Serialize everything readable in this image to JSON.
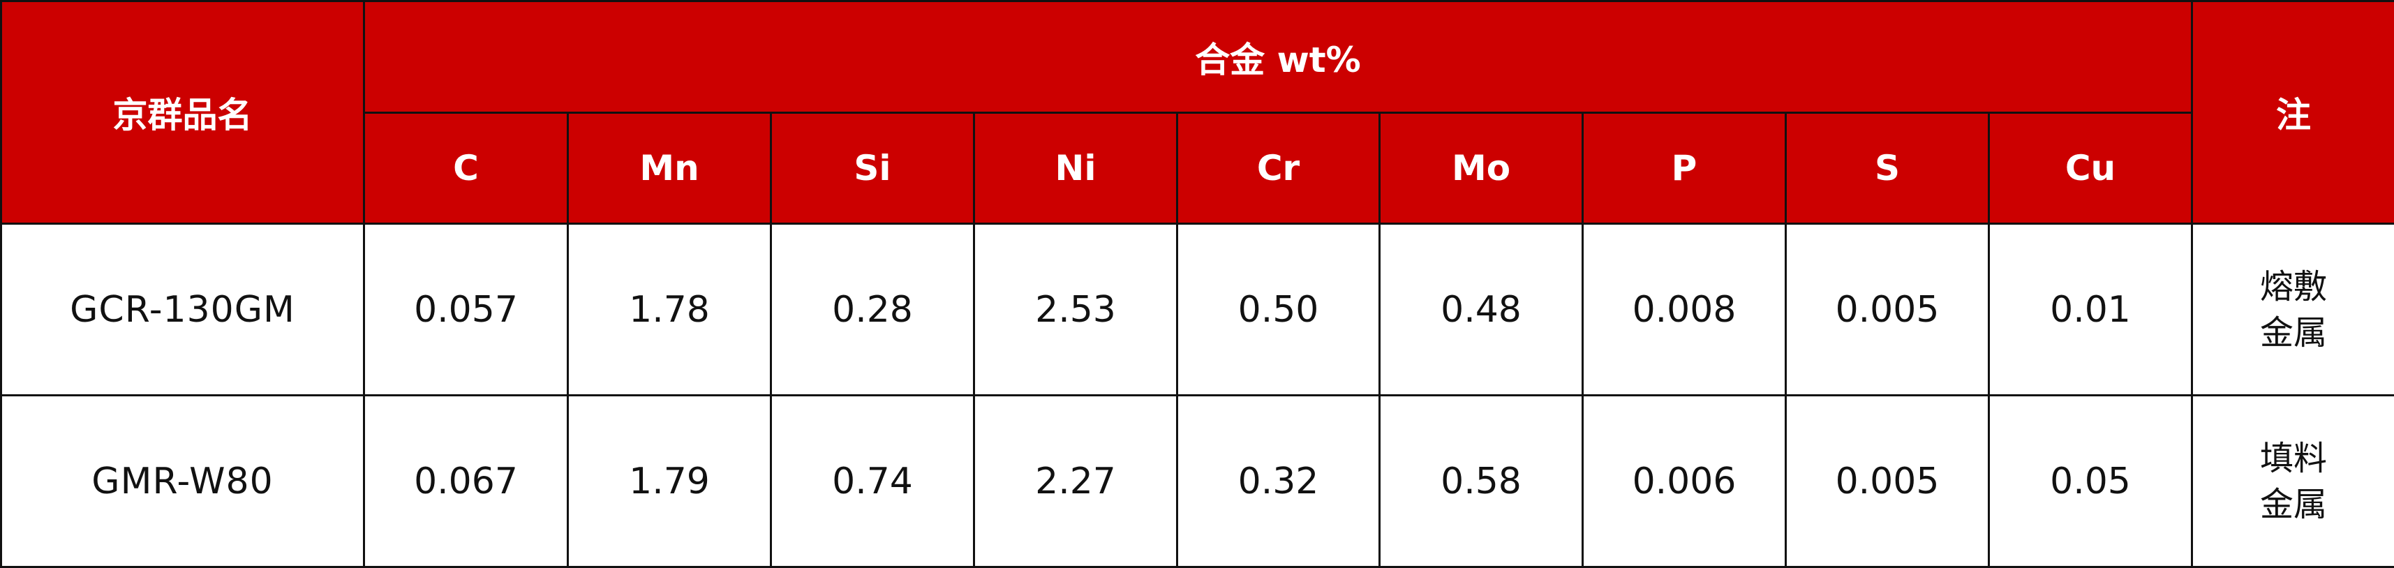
{
  "header": {
    "name_label": "京群品名",
    "alloy_label": "合金 wt%",
    "note_label": "注",
    "elements": [
      "C",
      "Mn",
      "Si",
      "Ni",
      "Cr",
      "Mo",
      "P",
      "S",
      "Cu"
    ]
  },
  "rows": [
    {
      "name": "GCR-130GM",
      "values": [
        "0.057",
        "1.78",
        "0.28",
        "2.53",
        "0.50",
        "0.48",
        "0.008",
        "0.005",
        "0.01"
      ],
      "note_line1": "熔敷",
      "note_line2": "金属"
    },
    {
      "name": "GMR-W80",
      "values": [
        "0.067",
        "1.79",
        "0.74",
        "2.27",
        "0.32",
        "0.58",
        "0.006",
        "0.005",
        "0.05"
      ],
      "note_line1": "填料",
      "note_line2": "金属"
    }
  ],
  "colors": {
    "header_bg": "#cc0000",
    "header_text": "#ffffff",
    "border": "#111111"
  }
}
